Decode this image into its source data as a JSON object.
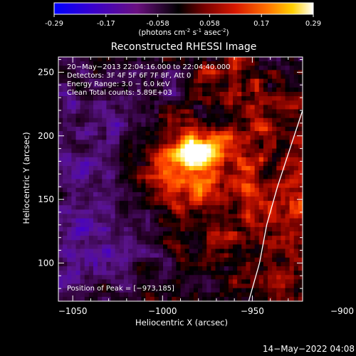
{
  "colorbar": {
    "ticks": [
      "-0.29",
      "-0.17",
      "-0.058",
      "0.058",
      "0.17",
      "0.29"
    ],
    "units_main": "(photons cm",
    "units_exp1": "-2",
    "units_mid1": " s",
    "units_exp2": "-1",
    "units_mid2": " asec",
    "units_exp3": "-2",
    "units_end": ")",
    "range": [
      -0.29,
      0.29
    ],
    "colors": [
      "#0000ff",
      "#4a00b0",
      "#7a1070",
      "#000000",
      "#7a0000",
      "#cc1000",
      "#ff4400",
      "#ffa000",
      "#ffff40",
      "#ffffff"
    ]
  },
  "chart_data": {
    "type": "heatmap",
    "title": "Reconstructed RHESSI Image",
    "xlabel": "Heliocentric X (arcsec)",
    "ylabel": "Heliocentric Y (arcsec)",
    "xlim": [
      -1058,
      -922
    ],
    "ylim": [
      70,
      262
    ],
    "x_ticks": [
      -1050,
      -1000,
      -950,
      -900
    ],
    "x_tick_labels": [
      "−1050",
      "−1000",
      "−950",
      "−900"
    ],
    "y_ticks": [
      100,
      150,
      200,
      250
    ],
    "y_tick_labels": [
      "100",
      "150",
      "200",
      "250"
    ],
    "peak": [
      -973,
      185
    ],
    "annotations": [
      "20−May−2013 22:04:16.000 to 22:04:40.000",
      "Detectors: 3F 4F 5F 6F 7F 8F, Att 0",
      "Energy Range: 3.0 − 6.0 keV",
      "Clean     Total counts: 5.89E+03"
    ],
    "peak_label": "Position of Peak = [−973,185]",
    "limb": [
      [
        -952,
        70
      ],
      [
        -946,
        100
      ],
      [
        -942,
        130
      ],
      [
        -936,
        160
      ],
      [
        -929,
        190
      ],
      [
        -922,
        220
      ],
      [
        -915,
        262
      ]
    ]
  },
  "footer": {
    "timestamp": "14−May−2022 04:08"
  }
}
